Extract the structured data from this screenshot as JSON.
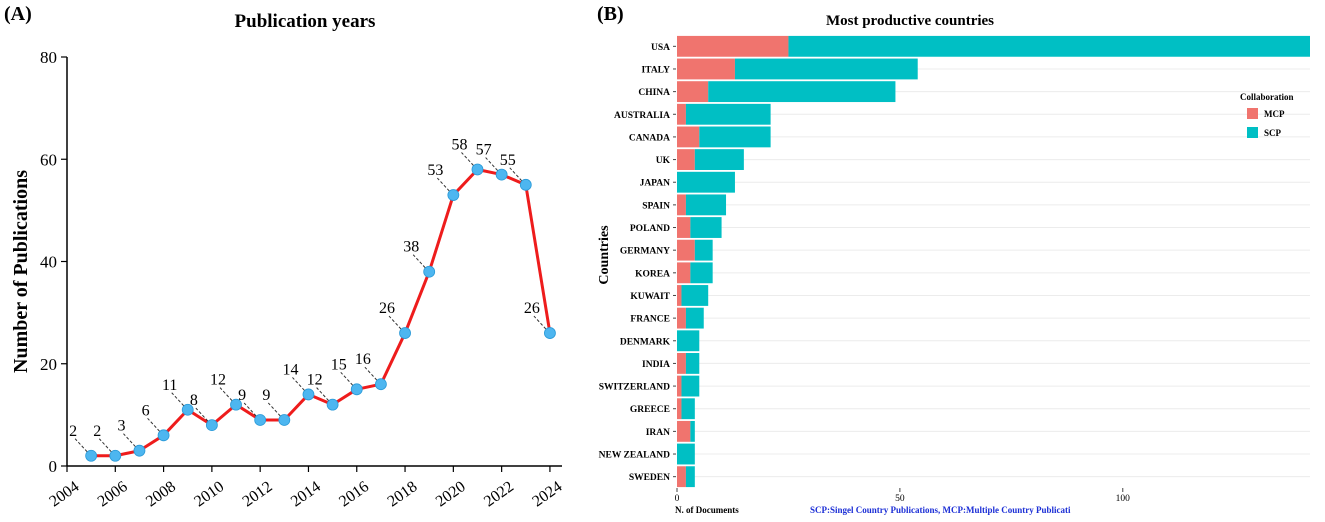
{
  "panels": {
    "a_label": "(A)",
    "b_label": "(B)"
  },
  "chart_data": [
    {
      "type": "line",
      "title": "Publication years",
      "xlabel": "",
      "ylabel": "Number of Publications",
      "x": [
        2005,
        2006,
        2007,
        2008,
        2009,
        2010,
        2011,
        2012,
        2013,
        2014,
        2015,
        2016,
        2017,
        2018,
        2019,
        2020,
        2021,
        2022,
        2023,
        2024
      ],
      "values": [
        2,
        2,
        3,
        6,
        11,
        8,
        12,
        9,
        9,
        14,
        12,
        15,
        16,
        26,
        38,
        53,
        58,
        57,
        55,
        26
      ],
      "data_labels": [
        "2",
        "2",
        "3",
        "6",
        "11",
        "8",
        "12",
        "9",
        "9",
        "14",
        "12",
        "15",
        "16",
        "26",
        "38",
        "53",
        "58",
        "57",
        "55",
        "26"
      ],
      "xticks": [
        "2004",
        "2006",
        "2008",
        "2010",
        "2012",
        "2014",
        "2016",
        "2018",
        "2020",
        "2022",
        "2024"
      ],
      "xtick_values": [
        2004,
        2006,
        2008,
        2010,
        2012,
        2014,
        2016,
        2018,
        2020,
        2022,
        2024
      ],
      "yticks": [
        "0",
        "20",
        "40",
        "60",
        "80"
      ],
      "ytick_values": [
        0,
        20,
        40,
        60,
        80
      ],
      "xlim": [
        2004,
        2024.5
      ],
      "ylim": [
        0,
        80
      ],
      "line_color": "#ee1c1c",
      "marker_color": "#4db6f0"
    },
    {
      "type": "bar",
      "orientation": "horizontal",
      "stacked": true,
      "title": "Most productive countries",
      "xlabel": "N. of Documents",
      "ylabel": "Countries",
      "caption": "SCP:Singel Country Publications, MCP:Multiple Country Publicati",
      "categories": [
        "USA",
        "ITALY",
        "CHINA",
        "AUSTRALIA",
        "CANADA",
        "UK",
        "JAPAN",
        "SPAIN",
        "POLAND",
        "GERMANY",
        "KOREA",
        "KUWAIT",
        "FRANCE",
        "DENMARK",
        "INDIA",
        "SWITZERLAND",
        "GREECE",
        "IRAN",
        "NEW ZEALAND",
        "SWEDEN"
      ],
      "series": [
        {
          "name": "MCP",
          "color": "#f0746e",
          "values": [
            25,
            13,
            7,
            2,
            5,
            4,
            0,
            2,
            3,
            4,
            3,
            1,
            2,
            0,
            2,
            1,
            1,
            3,
            0,
            2
          ]
        },
        {
          "name": "SCP",
          "color": "#00bfc4",
          "values": [
            117,
            41,
            42,
            19,
            16,
            11,
            13,
            9,
            7,
            4,
            5,
            6,
            4,
            5,
            3,
            4,
            3,
            1,
            4,
            2
          ]
        }
      ],
      "xticks": [
        "0",
        "50",
        "100"
      ],
      "xtick_values": [
        0,
        50,
        100
      ],
      "xlim": [
        0,
        142
      ],
      "legend": {
        "title": "Collaboration",
        "position": "right",
        "entries": [
          "MCP",
          "SCP"
        ]
      }
    }
  ]
}
